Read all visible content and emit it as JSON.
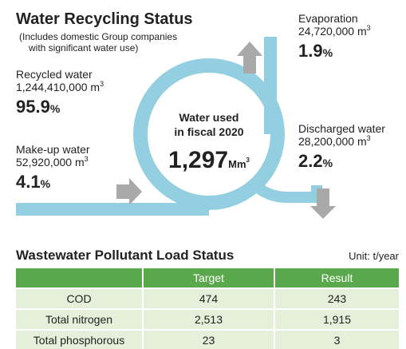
{
  "header": {
    "title": "Water Recycling Status",
    "note_lines": [
      "(Includes domestic Group companies",
      "with significant water use)"
    ]
  },
  "flows": [
    {
      "label": "Recycled water",
      "amount": "1,244,410,000 m",
      "unit_sup": "3",
      "share": "95.9",
      "share_unit": "%"
    },
    {
      "label": "Make-up water",
      "amount": "52,920,000 m",
      "unit_sup": "3",
      "share": "4.1",
      "share_unit": "%"
    },
    {
      "label": "Evaporation",
      "amount": "24,720,000 m",
      "unit_sup": "3",
      "share": "1.9",
      "share_unit": "%"
    },
    {
      "label": "Discharged water",
      "amount": "28,200,000 m",
      "unit_sup": "3",
      "share": "2.2",
      "share_unit": "%"
    }
  ],
  "center": {
    "lines": [
      "Water used",
      "in fiscal 2020"
    ],
    "value": "1,297",
    "unit": "Mm",
    "unit_sup": "3"
  },
  "table": {
    "title": "Wastewater Pollutant Load Status",
    "unit": "Unit: t/year",
    "columns": [
      "Target",
      "Result"
    ],
    "rows": [
      [
        "COD",
        "474",
        "243"
      ],
      [
        "Total nitrogen",
        "2,513",
        "1,915"
      ],
      [
        "Total phosphorous",
        "23",
        "3"
      ]
    ]
  }
}
